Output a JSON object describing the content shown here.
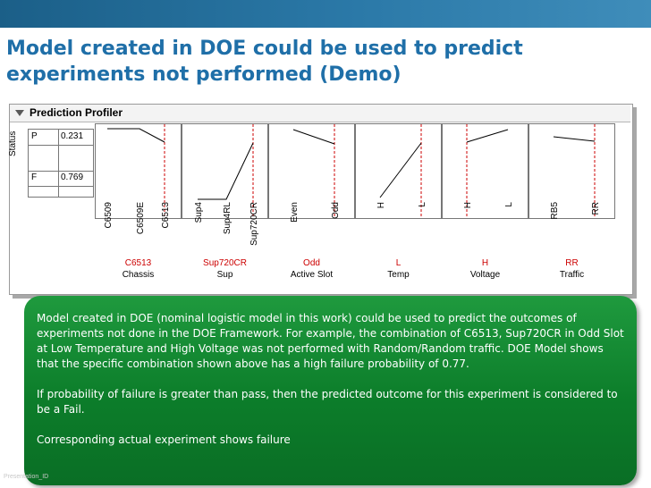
{
  "slide": {
    "title": "Model created in DOE could be used to predict experiments not performed (Demo)",
    "footer": "Presentation_ID"
  },
  "profiler": {
    "title": "Prediction Profiler",
    "status_label": "Status",
    "rows": [
      {
        "label": "P",
        "value": "0.231"
      },
      {
        "label": "F",
        "value": "0.769"
      }
    ],
    "factors": [
      {
        "name": "Chassis",
        "current": "C6513",
        "levels": [
          "C6509",
          "C6509E",
          "C6513"
        ]
      },
      {
        "name": "Sup",
        "current": "Sup720CR",
        "levels": [
          "Sup4",
          "Sup4RL",
          "Sup720CR"
        ]
      },
      {
        "name": "Active Slot",
        "current": "Odd",
        "levels": [
          "Even",
          "Odd"
        ]
      },
      {
        "name": "Temp",
        "current": "L",
        "levels": [
          "H",
          "L"
        ]
      },
      {
        "name": "Voltage",
        "current": "H",
        "levels": [
          "H",
          "L"
        ]
      },
      {
        "name": "Traffic",
        "current": "RR",
        "levels": [
          "RB5",
          "RR"
        ]
      }
    ],
    "colors": {
      "trace": "#000000",
      "current_marker": "#cc0000",
      "current_text": "#cc0000"
    }
  },
  "callout": {
    "paragraph_1": "Model created in DOE (nominal logistic model in this work) could be used to predict the outcomes of experiments not done in the DOE Framework.  For example, the combination of C6513, Sup720CR in Odd Slot at Low Temperature and High Voltage was not performed with Random/Random traffic.  DOE Model shows that the specific combination shown above has a high failure probability of 0.77.",
    "paragraph_2": "If probability of failure is greater than pass, then the predicted outcome for this experiment is considered to be a Fail.",
    "paragraph_3": "Corresponding actual experiment shows failure",
    "color": "#0c7d2a"
  }
}
